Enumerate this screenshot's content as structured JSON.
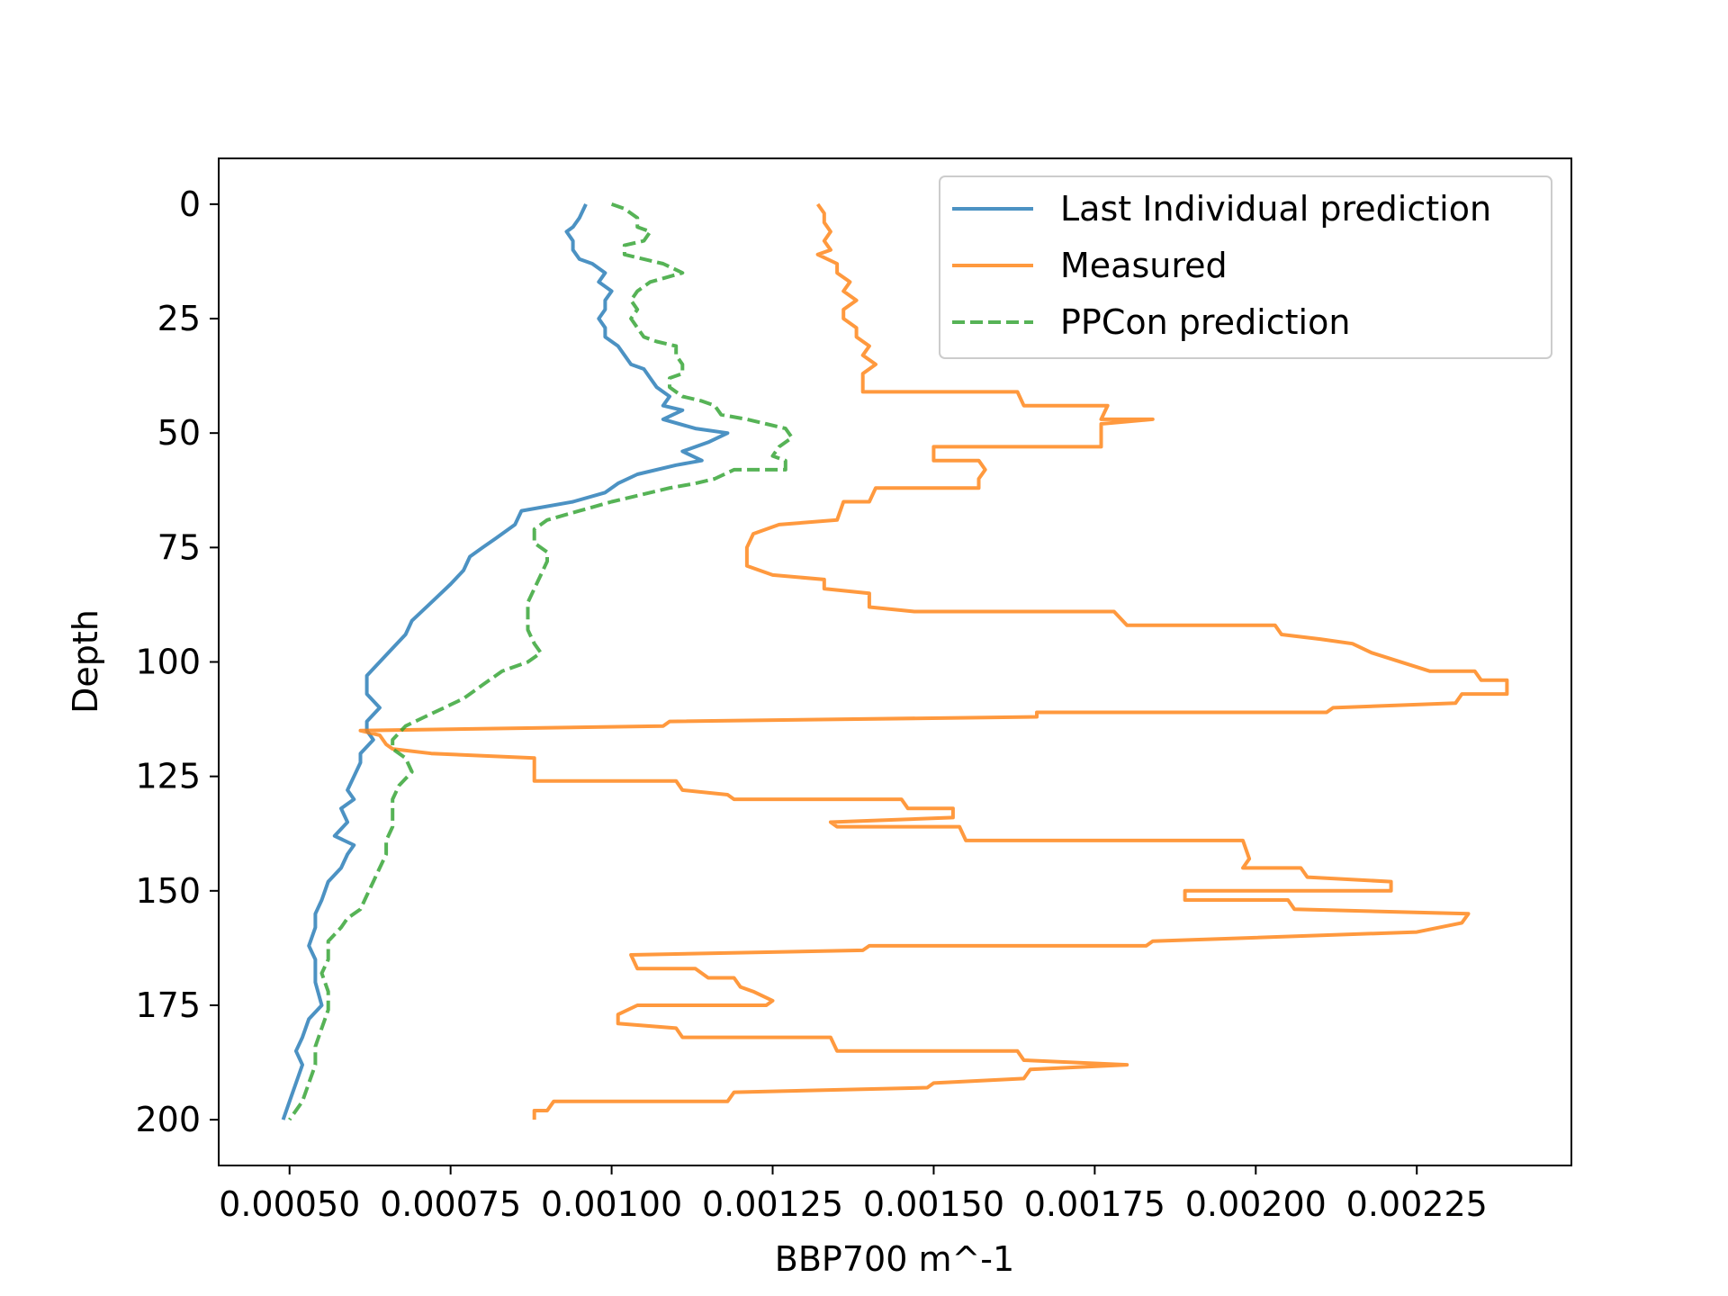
{
  "chart_data": {
    "type": "line",
    "xlabel": "BBP700 m^-1",
    "ylabel": "Depth",
    "xlim": [
      0.00039,
      0.00249
    ],
    "ylim": [
      210,
      -10
    ],
    "y_inverted": true,
    "xticks": [
      0.0005,
      0.00075,
      0.001,
      0.00125,
      0.0015,
      0.00175,
      0.002,
      0.00225
    ],
    "xtick_labels": [
      "0.00050",
      "0.00075",
      "0.00100",
      "0.00125",
      "0.00150",
      "0.00175",
      "0.00200",
      "0.00225"
    ],
    "yticks": [
      0,
      25,
      50,
      75,
      100,
      125,
      150,
      175,
      200
    ],
    "ytick_labels": [
      "0",
      "25",
      "50",
      "75",
      "100",
      "125",
      "150",
      "175",
      "200"
    ],
    "grid": false,
    "legend_position": "top-right",
    "series": [
      {
        "name": "Last Individual prediction",
        "color": "#1f77b4",
        "dash": "solid",
        "points": [
          [
            0.00096,
            0
          ],
          [
            0.00095,
            3
          ],
          [
            0.00094,
            5
          ],
          [
            0.00093,
            6
          ],
          [
            0.00094,
            8
          ],
          [
            0.00094,
            10
          ],
          [
            0.00095,
            12
          ],
          [
            0.00097,
            13
          ],
          [
            0.00099,
            15
          ],
          [
            0.00098,
            17
          ],
          [
            0.001,
            19
          ],
          [
            0.00099,
            21
          ],
          [
            0.00099,
            23
          ],
          [
            0.00098,
            25
          ],
          [
            0.00099,
            27
          ],
          [
            0.00099,
            29
          ],
          [
            0.00101,
            31
          ],
          [
            0.00102,
            33
          ],
          [
            0.00103,
            35
          ],
          [
            0.00105,
            36
          ],
          [
            0.00106,
            38
          ],
          [
            0.00107,
            40
          ],
          [
            0.00109,
            42
          ],
          [
            0.00108,
            44
          ],
          [
            0.00111,
            45
          ],
          [
            0.00108,
            47
          ],
          [
            0.00113,
            49
          ],
          [
            0.00118,
            50
          ],
          [
            0.00115,
            52
          ],
          [
            0.00111,
            54
          ],
          [
            0.00114,
            56
          ],
          [
            0.0011,
            57
          ],
          [
            0.00104,
            59
          ],
          [
            0.00101,
            61
          ],
          [
            0.00099,
            63
          ],
          [
            0.00094,
            65
          ],
          [
            0.00086,
            67
          ],
          [
            0.00085,
            70
          ],
          [
            0.00082,
            73
          ],
          [
            0.0008,
            75
          ],
          [
            0.00078,
            77
          ],
          [
            0.00077,
            80
          ],
          [
            0.00075,
            83
          ],
          [
            0.00072,
            87
          ],
          [
            0.00069,
            91
          ],
          [
            0.00068,
            94
          ],
          [
            0.00066,
            97
          ],
          [
            0.00064,
            100
          ],
          [
            0.00062,
            103
          ],
          [
            0.00062,
            107
          ],
          [
            0.00064,
            110
          ],
          [
            0.00062,
            113
          ],
          [
            0.00062,
            115
          ],
          [
            0.00063,
            117
          ],
          [
            0.00061,
            120
          ],
          [
            0.00061,
            122
          ],
          [
            0.0006,
            125
          ],
          [
            0.00059,
            128
          ],
          [
            0.0006,
            130
          ],
          [
            0.00058,
            132
          ],
          [
            0.00059,
            135
          ],
          [
            0.00057,
            138
          ],
          [
            0.0006,
            140
          ],
          [
            0.00059,
            142
          ],
          [
            0.00058,
            145
          ],
          [
            0.00056,
            148
          ],
          [
            0.00055,
            152
          ],
          [
            0.00054,
            155
          ],
          [
            0.00054,
            158
          ],
          [
            0.00053,
            162
          ],
          [
            0.00054,
            165
          ],
          [
            0.00054,
            170
          ],
          [
            0.00055,
            175
          ],
          [
            0.00053,
            178
          ],
          [
            0.00052,
            182
          ],
          [
            0.00051,
            185
          ],
          [
            0.00052,
            188
          ],
          [
            0.00051,
            192
          ],
          [
            0.0005,
            196
          ],
          [
            0.00049,
            200
          ]
        ]
      },
      {
        "name": "Measured",
        "color": "#ff7f0e",
        "dash": "solid",
        "points": [
          [
            0.00132,
            0
          ],
          [
            0.00133,
            2
          ],
          [
            0.00133,
            4
          ],
          [
            0.00134,
            6
          ],
          [
            0.00133,
            8
          ],
          [
            0.00134,
            10
          ],
          [
            0.00132,
            11
          ],
          [
            0.00135,
            13
          ],
          [
            0.00135,
            15
          ],
          [
            0.00137,
            17
          ],
          [
            0.00136,
            19
          ],
          [
            0.00138,
            21
          ],
          [
            0.00136,
            23
          ],
          [
            0.00136,
            25
          ],
          [
            0.00138,
            27
          ],
          [
            0.00138,
            29
          ],
          [
            0.0014,
            31
          ],
          [
            0.00139,
            33
          ],
          [
            0.00141,
            35
          ],
          [
            0.00139,
            37
          ],
          [
            0.00139,
            41
          ],
          [
            0.00163,
            41
          ],
          [
            0.00164,
            44
          ],
          [
            0.00177,
            44
          ],
          [
            0.00176,
            47
          ],
          [
            0.00184,
            47
          ],
          [
            0.00176,
            48
          ],
          [
            0.00176,
            53
          ],
          [
            0.0015,
            53
          ],
          [
            0.0015,
            56
          ],
          [
            0.00157,
            56
          ],
          [
            0.00158,
            58
          ],
          [
            0.00157,
            60
          ],
          [
            0.00157,
            62
          ],
          [
            0.00141,
            62
          ],
          [
            0.0014,
            65
          ],
          [
            0.00136,
            65
          ],
          [
            0.00135,
            69
          ],
          [
            0.00126,
            70
          ],
          [
            0.00122,
            72
          ],
          [
            0.00121,
            75
          ],
          [
            0.00121,
            79
          ],
          [
            0.00125,
            81
          ],
          [
            0.00133,
            82
          ],
          [
            0.00133,
            84
          ],
          [
            0.0014,
            85
          ],
          [
            0.0014,
            88
          ],
          [
            0.00147,
            89
          ],
          [
            0.00178,
            89
          ],
          [
            0.0018,
            92
          ],
          [
            0.00203,
            92
          ],
          [
            0.00204,
            94
          ],
          [
            0.0021,
            95
          ],
          [
            0.00215,
            96
          ],
          [
            0.00218,
            98
          ],
          [
            0.00227,
            102
          ],
          [
            0.00234,
            102
          ],
          [
            0.00235,
            104
          ],
          [
            0.00239,
            104
          ],
          [
            0.00239,
            107
          ],
          [
            0.00232,
            107
          ],
          [
            0.00231,
            109
          ],
          [
            0.00212,
            110
          ],
          [
            0.00211,
            111
          ],
          [
            0.00166,
            111
          ],
          [
            0.00166,
            112
          ],
          [
            0.00109,
            113
          ],
          [
            0.00108,
            114
          ],
          [
            0.00061,
            115
          ],
          [
            0.00064,
            116
          ],
          [
            0.00065,
            118
          ],
          [
            0.00066,
            119
          ],
          [
            0.00072,
            120
          ],
          [
            0.00088,
            121
          ],
          [
            0.00088,
            126
          ],
          [
            0.0011,
            126
          ],
          [
            0.00111,
            128
          ],
          [
            0.00118,
            129
          ],
          [
            0.00119,
            130
          ],
          [
            0.00145,
            130
          ],
          [
            0.00146,
            132
          ],
          [
            0.00153,
            132
          ],
          [
            0.00153,
            134
          ],
          [
            0.00134,
            135
          ],
          [
            0.00135,
            136
          ],
          [
            0.00154,
            136
          ],
          [
            0.00155,
            139
          ],
          [
            0.00198,
            139
          ],
          [
            0.00199,
            143
          ],
          [
            0.00198,
            145
          ],
          [
            0.00207,
            145
          ],
          [
            0.00208,
            147
          ],
          [
            0.00221,
            148
          ],
          [
            0.00221,
            150
          ],
          [
            0.00189,
            150
          ],
          [
            0.00189,
            152
          ],
          [
            0.00205,
            152
          ],
          [
            0.00206,
            154
          ],
          [
            0.00233,
            155
          ],
          [
            0.00232,
            157
          ],
          [
            0.00225,
            159
          ],
          [
            0.00184,
            161
          ],
          [
            0.00183,
            162
          ],
          [
            0.0014,
            162
          ],
          [
            0.00139,
            163
          ],
          [
            0.00103,
            164
          ],
          [
            0.00104,
            167
          ],
          [
            0.00113,
            167
          ],
          [
            0.00115,
            169
          ],
          [
            0.00119,
            169
          ],
          [
            0.0012,
            171
          ],
          [
            0.00122,
            172
          ],
          [
            0.00125,
            174
          ],
          [
            0.00124,
            175
          ],
          [
            0.00104,
            175
          ],
          [
            0.00101,
            177
          ],
          [
            0.00101,
            179
          ],
          [
            0.0011,
            180
          ],
          [
            0.00111,
            182
          ],
          [
            0.00134,
            182
          ],
          [
            0.00135,
            185
          ],
          [
            0.00163,
            185
          ],
          [
            0.00164,
            187
          ],
          [
            0.0018,
            188
          ],
          [
            0.00165,
            189
          ],
          [
            0.00164,
            191
          ],
          [
            0.0015,
            192
          ],
          [
            0.00149,
            193
          ],
          [
            0.00119,
            194
          ],
          [
            0.00118,
            196
          ],
          [
            0.00091,
            196
          ],
          [
            0.0009,
            198
          ],
          [
            0.00088,
            198
          ],
          [
            0.00088,
            200
          ]
        ]
      },
      {
        "name": "PPCon prediction",
        "color": "#2ca02c",
        "dash": "dashed",
        "points": [
          [
            0.001,
            0
          ],
          [
            0.00102,
            1
          ],
          [
            0.00104,
            3
          ],
          [
            0.00104,
            5
          ],
          [
            0.00106,
            6
          ],
          [
            0.00105,
            8
          ],
          [
            0.00102,
            9
          ],
          [
            0.00102,
            11
          ],
          [
            0.00105,
            12
          ],
          [
            0.00108,
            13
          ],
          [
            0.00111,
            15
          ],
          [
            0.00106,
            17
          ],
          [
            0.00104,
            19
          ],
          [
            0.00103,
            21
          ],
          [
            0.00104,
            23
          ],
          [
            0.00103,
            25
          ],
          [
            0.00104,
            27
          ],
          [
            0.00105,
            29
          ],
          [
            0.00107,
            30
          ],
          [
            0.0011,
            31
          ],
          [
            0.0011,
            33
          ],
          [
            0.00111,
            35
          ],
          [
            0.00111,
            37
          ],
          [
            0.00109,
            38
          ],
          [
            0.00109,
            40
          ],
          [
            0.00111,
            42
          ],
          [
            0.00114,
            43
          ],
          [
            0.00116,
            44
          ],
          [
            0.00117,
            46
          ],
          [
            0.00121,
            47
          ],
          [
            0.00124,
            48
          ],
          [
            0.00127,
            49
          ],
          [
            0.00128,
            51
          ],
          [
            0.00126,
            53
          ],
          [
            0.00125,
            55
          ],
          [
            0.00127,
            56
          ],
          [
            0.00127,
            58
          ],
          [
            0.00119,
            58
          ],
          [
            0.00116,
            60
          ],
          [
            0.00113,
            61
          ],
          [
            0.00109,
            62
          ],
          [
            0.00106,
            63
          ],
          [
            0.00103,
            64
          ],
          [
            0.001,
            65
          ],
          [
            0.00095,
            67
          ],
          [
            0.0009,
            69
          ],
          [
            0.00088,
            71
          ],
          [
            0.00088,
            74
          ],
          [
            0.0009,
            76
          ],
          [
            0.0009,
            78
          ],
          [
            0.00089,
            81
          ],
          [
            0.00088,
            84
          ],
          [
            0.00087,
            87
          ],
          [
            0.00087,
            90
          ],
          [
            0.00087,
            93
          ],
          [
            0.00088,
            96
          ],
          [
            0.00089,
            98
          ],
          [
            0.00087,
            100
          ],
          [
            0.00083,
            102
          ],
          [
            0.0008,
            105
          ],
          [
            0.00077,
            108
          ],
          [
            0.00074,
            110
          ],
          [
            0.00071,
            112
          ],
          [
            0.00068,
            114
          ],
          [
            0.00066,
            117
          ],
          [
            0.00066,
            119
          ],
          [
            0.00068,
            121
          ],
          [
            0.00069,
            124
          ],
          [
            0.00067,
            127
          ],
          [
            0.00066,
            130
          ],
          [
            0.00066,
            133
          ],
          [
            0.00066,
            136
          ],
          [
            0.00065,
            139
          ],
          [
            0.00065,
            142
          ],
          [
            0.00064,
            145
          ],
          [
            0.00063,
            148
          ],
          [
            0.00062,
            151
          ],
          [
            0.00061,
            154
          ],
          [
            0.00059,
            156
          ],
          [
            0.00058,
            158
          ],
          [
            0.00056,
            161
          ],
          [
            0.00056,
            165
          ],
          [
            0.00055,
            168
          ],
          [
            0.00056,
            172
          ],
          [
            0.00056,
            176
          ],
          [
            0.00055,
            180
          ],
          [
            0.00054,
            184
          ],
          [
            0.00054,
            188
          ],
          [
            0.00053,
            192
          ],
          [
            0.00052,
            196
          ],
          [
            0.0005,
            200
          ]
        ]
      }
    ]
  }
}
